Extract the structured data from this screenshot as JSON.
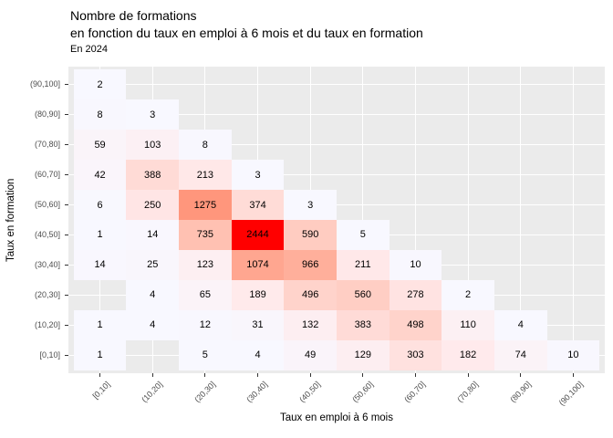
{
  "title": {
    "line1": "Nombre de formations",
    "line2": "en fonction du taux en emploi à 6 mois et du taux en formation"
  },
  "subtitle": "En 2024",
  "chart_data": {
    "type": "heatmap",
    "title": "Nombre de formations en fonction du taux en emploi à 6 mois et du taux en formation",
    "subtitle": "En 2024",
    "xlabel": "Taux en emploi à 6 mois",
    "ylabel": "Taux en formation",
    "x_categories": [
      "[0,10]",
      "(10,20]",
      "(20,30]",
      "(30,40]",
      "(40,50]",
      "(50,60]",
      "(60,70]",
      "(70,80]",
      "(80,90]",
      "(90,100]"
    ],
    "y_categories_top_to_bottom": [
      "(90,100]",
      "(80,90]",
      "(70,80]",
      "(60,70]",
      "(50,60]",
      "(40,50]",
      "(30,40]",
      "(20,30]",
      "(10,20]",
      "[0,10]"
    ],
    "values_top_to_bottom": [
      [
        2,
        null,
        null,
        null,
        null,
        null,
        null,
        null,
        null,
        null
      ],
      [
        8,
        3,
        null,
        null,
        null,
        null,
        null,
        null,
        null,
        null
      ],
      [
        59,
        103,
        8,
        null,
        null,
        null,
        null,
        null,
        null,
        null
      ],
      [
        42,
        388,
        213,
        3,
        null,
        null,
        null,
        null,
        null,
        null
      ],
      [
        6,
        250,
        1275,
        374,
        3,
        null,
        null,
        null,
        null,
        null
      ],
      [
        1,
        14,
        735,
        2444,
        590,
        5,
        null,
        null,
        null,
        null
      ],
      [
        14,
        25,
        123,
        1074,
        966,
        211,
        10,
        null,
        null,
        null
      ],
      [
        null,
        4,
        65,
        189,
        496,
        560,
        278,
        2,
        null,
        null
      ],
      [
        1,
        4,
        12,
        31,
        132,
        383,
        498,
        110,
        4,
        null
      ],
      [
        1,
        null,
        5,
        4,
        49,
        129,
        303,
        182,
        74,
        10
      ]
    ],
    "fill_scale": {
      "low": "#F8F8FF",
      "high": "#FF0000",
      "domain": [
        1,
        2444
      ],
      "interpolation": "lab"
    },
    "panel_background": "#EBEBEB",
    "grid_color": "#FFFFFF",
    "axis_text_color": "#4D4D4D",
    "value_text_color": "#000000",
    "legend": "none",
    "grid": "major-at-category-centers"
  }
}
